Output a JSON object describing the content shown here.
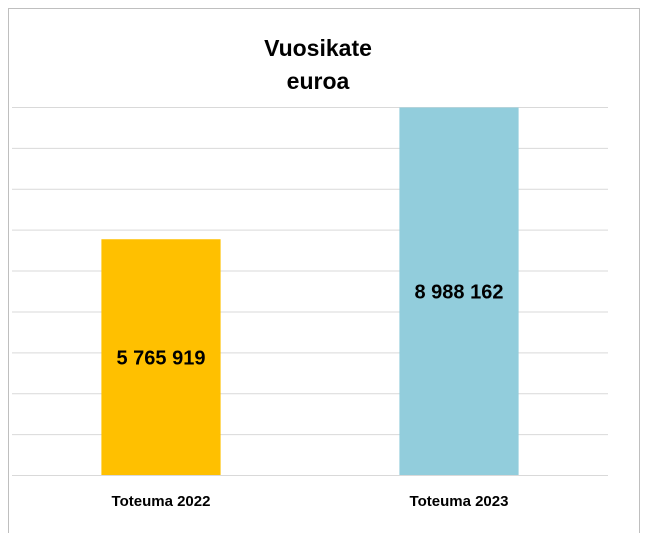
{
  "chart_data": {
    "type": "bar",
    "title": "Vuosikate",
    "subtitle": "euroa",
    "categories": [
      "Toteuma 2022",
      "Toteuma 2023"
    ],
    "values": [
      5765919,
      8988162
    ],
    "value_labels": [
      "5 765 919",
      "8 988 162"
    ],
    "colors": [
      "#ffc000",
      "#92cddc"
    ],
    "ylim": [
      0,
      9000000
    ],
    "yticks": [
      0,
      1000000,
      2000000,
      3000000,
      4000000,
      5000000,
      6000000,
      7000000,
      8000000,
      9000000
    ],
    "grid": true
  }
}
